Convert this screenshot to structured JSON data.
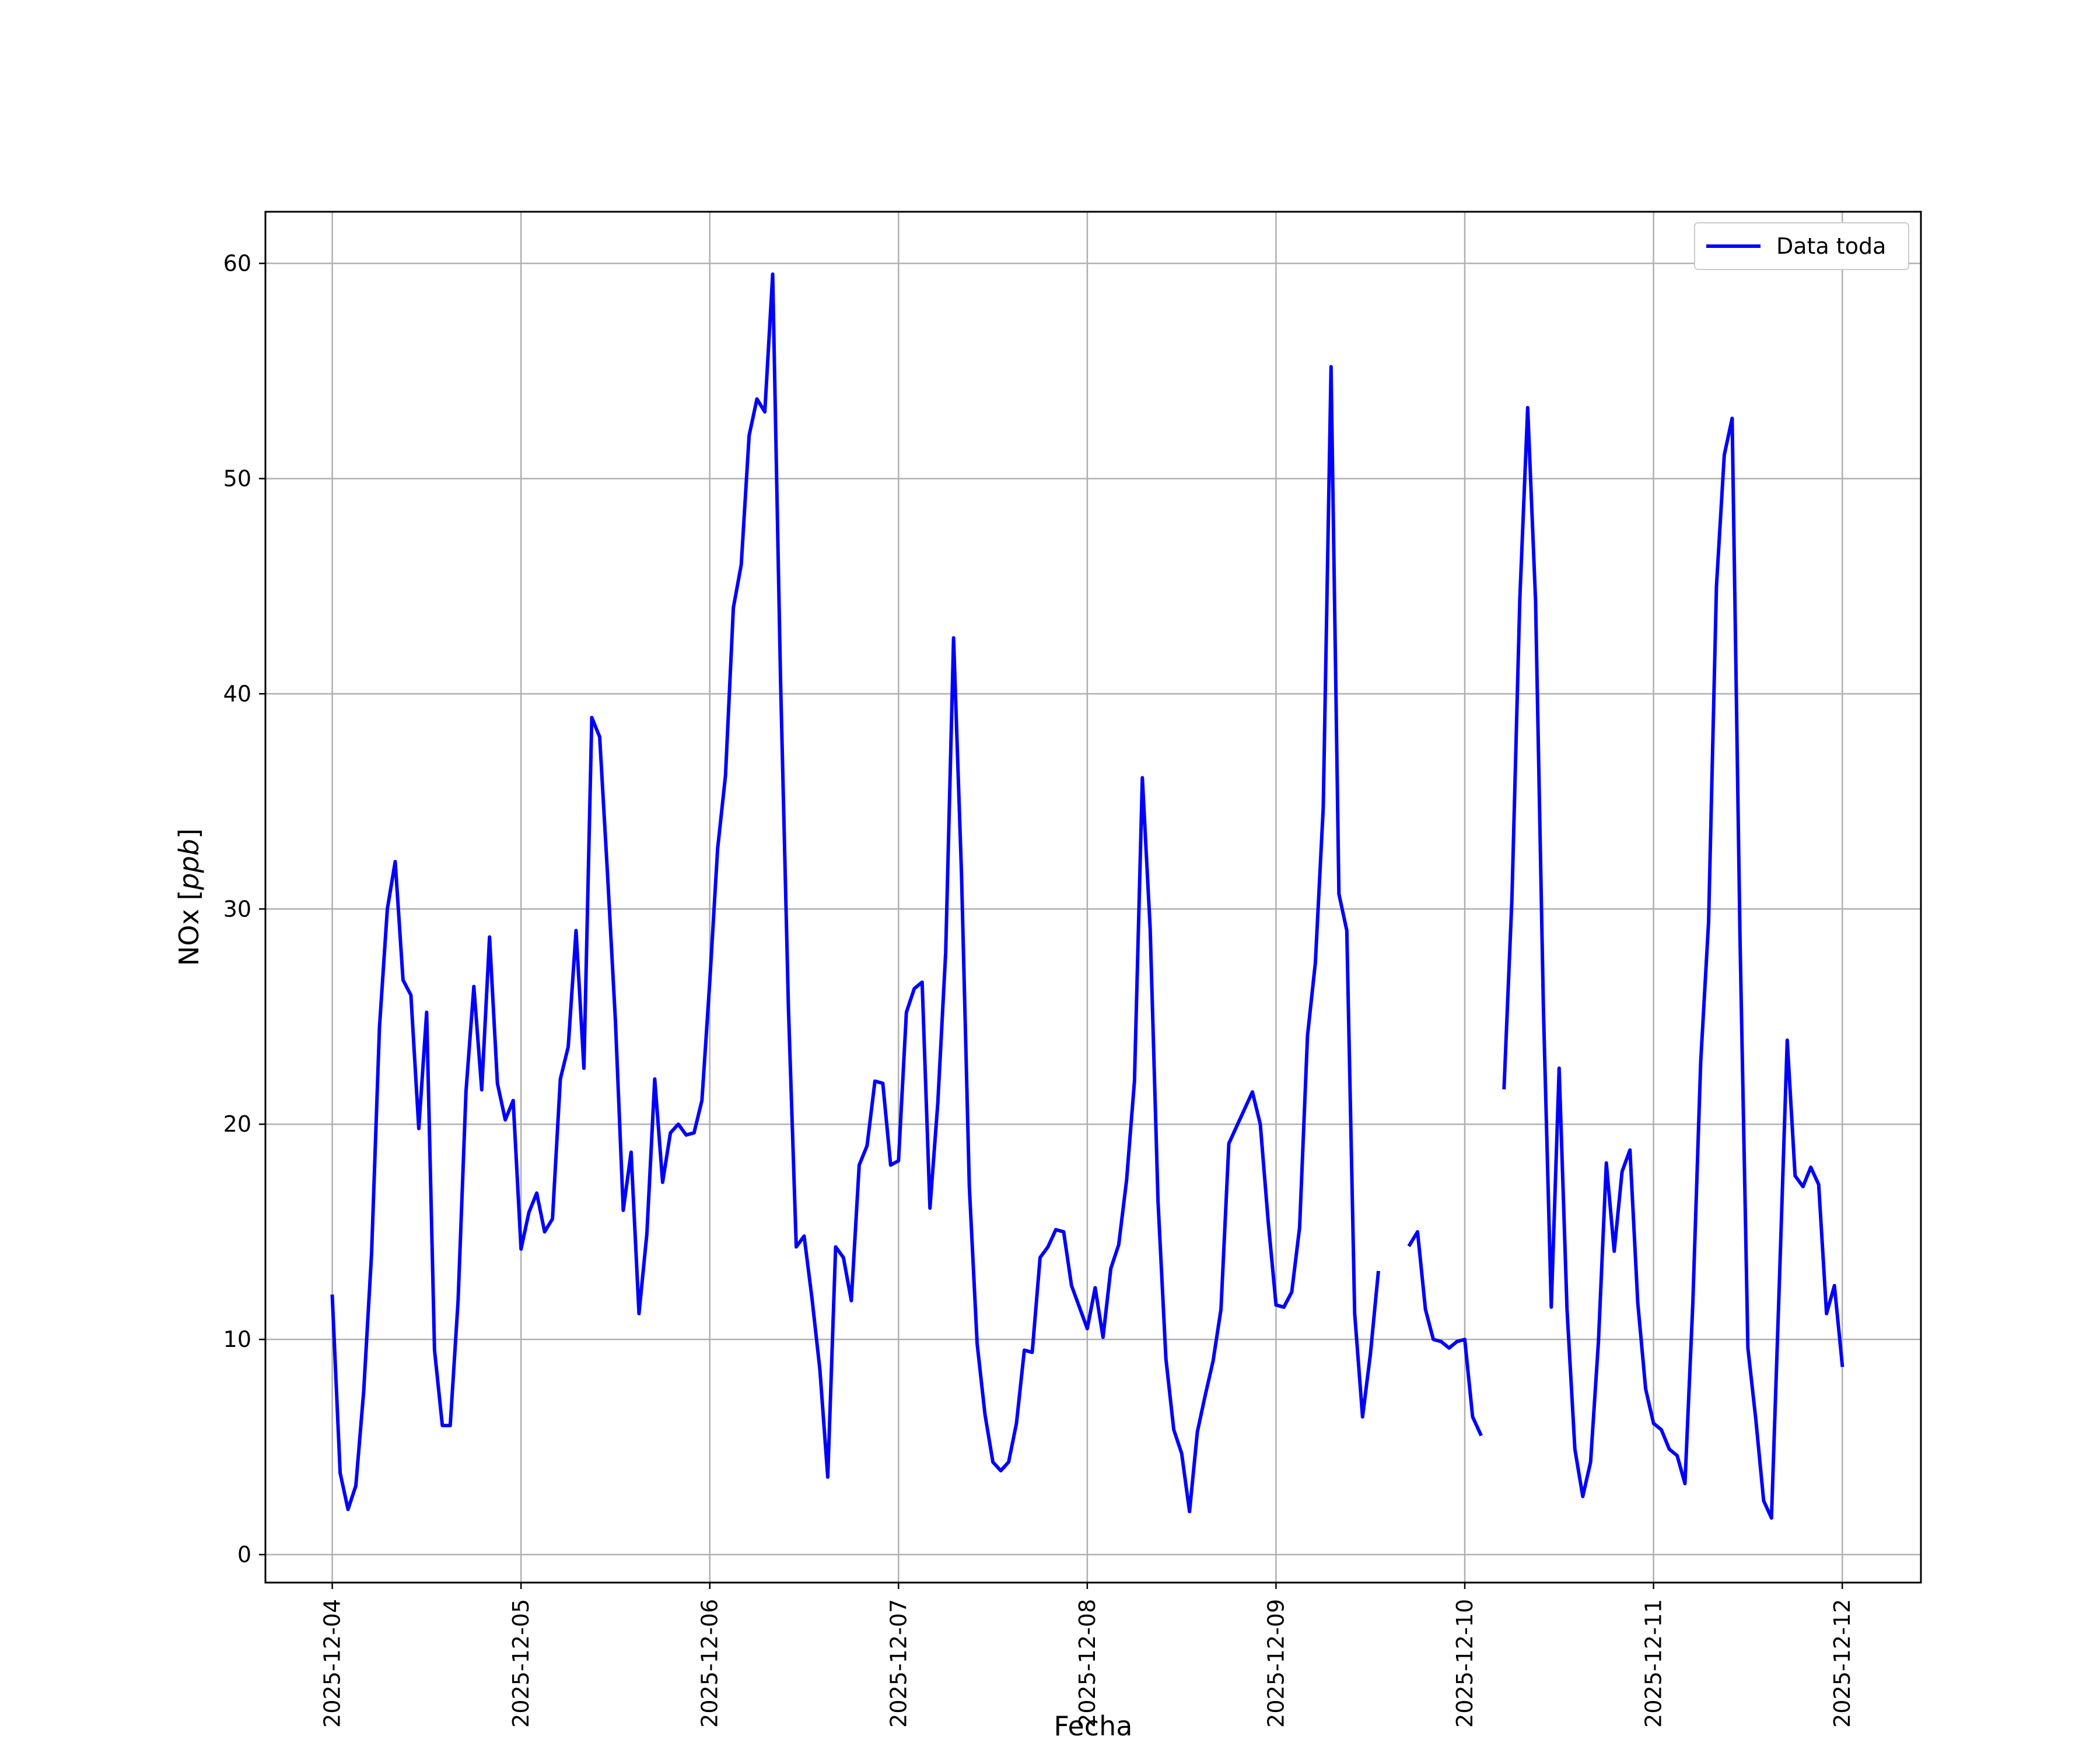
{
  "chart_data": {
    "type": "line",
    "title": "",
    "xlabel": "Fecha",
    "ylabel": "NOx [ppb]",
    "ylabel_parts": {
      "name": "NOx [",
      "unit": "ppb",
      "close": "]"
    },
    "x_ticks": [
      "2025-12-04",
      "2025-12-05",
      "2025-12-06",
      "2025-12-07",
      "2025-12-08",
      "2025-12-09",
      "2025-12-10",
      "2025-12-11",
      "2025-12-12"
    ],
    "y_ticks": [
      0,
      10,
      20,
      30,
      40,
      50,
      60
    ],
    "xlim": [
      "2025-12-03T15:30",
      "2025-12-12T10:00"
    ],
    "ylim": [
      -1.3,
      62.4
    ],
    "grid": true,
    "legend_position": "top-right",
    "series": [
      {
        "name": "Data toda",
        "color": "#0000ff",
        "points": [
          [
            "2025-12-04T00:00",
            12.0
          ],
          [
            "2025-12-04T01:00",
            3.8
          ],
          [
            "2025-12-04T02:00",
            2.1
          ],
          [
            "2025-12-04T03:00",
            3.2
          ],
          [
            "2025-12-04T04:00",
            7.6
          ],
          [
            "2025-12-04T05:00",
            14.0
          ],
          [
            "2025-12-04T06:00",
            24.5
          ],
          [
            "2025-12-04T07:00",
            30.0
          ],
          [
            "2025-12-04T08:00",
            32.2
          ],
          [
            "2025-12-04T09:00",
            26.7
          ],
          [
            "2025-12-04T10:00",
            26.0
          ],
          [
            "2025-12-04T11:00",
            19.8
          ],
          [
            "2025-12-04T12:00",
            25.2
          ],
          [
            "2025-12-04T13:00",
            9.5
          ],
          [
            "2025-12-04T14:00",
            6.0
          ],
          [
            "2025-12-04T15:00",
            6.0
          ],
          [
            "2025-12-04T16:00",
            11.8
          ],
          [
            "2025-12-04T17:00",
            21.5
          ],
          [
            "2025-12-04T18:00",
            26.4
          ],
          [
            "2025-12-04T19:00",
            21.6
          ],
          [
            "2025-12-04T20:00",
            28.7
          ],
          [
            "2025-12-04T21:00",
            21.9
          ],
          [
            "2025-12-04T22:00",
            20.2
          ],
          [
            "2025-12-04T23:00",
            21.1
          ],
          [
            "2025-12-05T00:00",
            14.2
          ],
          [
            "2025-12-05T01:00",
            15.9
          ],
          [
            "2025-12-05T02:00",
            16.8
          ],
          [
            "2025-12-05T03:00",
            15.0
          ],
          [
            "2025-12-05T04:00",
            15.6
          ],
          [
            "2025-12-05T05:00",
            22.1
          ],
          [
            "2025-12-05T06:00",
            23.6
          ],
          [
            "2025-12-05T07:00",
            29.0
          ],
          [
            "2025-12-05T08:00",
            22.6
          ],
          [
            "2025-12-05T09:00",
            38.9
          ],
          [
            "2025-12-05T10:00",
            38.0
          ],
          [
            "2025-12-05T11:00",
            31.6
          ],
          [
            "2025-12-05T12:00",
            24.8
          ],
          [
            "2025-12-05T13:00",
            16.0
          ],
          [
            "2025-12-05T14:00",
            18.7
          ],
          [
            "2025-12-05T15:00",
            11.2
          ],
          [
            "2025-12-05T16:00",
            14.9
          ],
          [
            "2025-12-05T17:00",
            22.1
          ],
          [
            "2025-12-05T18:00",
            17.3
          ],
          [
            "2025-12-05T19:00",
            19.6
          ],
          [
            "2025-12-05T20:00",
            20.0
          ],
          [
            "2025-12-05T21:00",
            19.5
          ],
          [
            "2025-12-05T22:00",
            19.6
          ],
          [
            "2025-12-05T23:00",
            21.1
          ],
          [
            "2025-12-06T00:00",
            26.6
          ],
          [
            "2025-12-06T01:00",
            32.8
          ],
          [
            "2025-12-06T02:00",
            36.2
          ],
          [
            "2025-12-06T03:00",
            44.0
          ],
          [
            "2025-12-06T04:00",
            46.0
          ],
          [
            "2025-12-06T05:00",
            52.0
          ],
          [
            "2025-12-06T06:00",
            53.7
          ],
          [
            "2025-12-06T07:00",
            53.1
          ],
          [
            "2025-12-06T08:00",
            59.5
          ],
          [
            "2025-12-06T09:00",
            40.6
          ],
          [
            "2025-12-06T10:00",
            25.4
          ],
          [
            "2025-12-06T11:00",
            14.3
          ],
          [
            "2025-12-06T12:00",
            14.8
          ],
          [
            "2025-12-06T13:00",
            11.9
          ],
          [
            "2025-12-06T14:00",
            8.6
          ],
          [
            "2025-12-06T15:00",
            3.6
          ],
          [
            "2025-12-06T16:00",
            14.3
          ],
          [
            "2025-12-06T17:00",
            13.8
          ],
          [
            "2025-12-06T18:00",
            11.8
          ],
          [
            "2025-12-06T19:00",
            18.1
          ],
          [
            "2025-12-06T20:00",
            19.0
          ],
          [
            "2025-12-06T21:00",
            22.0
          ],
          [
            "2025-12-06T22:00",
            21.9
          ],
          [
            "2025-12-06T23:00",
            18.1
          ],
          [
            "2025-12-07T00:00",
            18.3
          ],
          [
            "2025-12-07T01:00",
            25.2
          ],
          [
            "2025-12-07T02:00",
            26.3
          ],
          [
            "2025-12-07T03:00",
            26.6
          ],
          [
            "2025-12-07T04:00",
            16.1
          ],
          [
            "2025-12-07T05:00",
            21.0
          ],
          [
            "2025-12-07T06:00",
            28.0
          ],
          [
            "2025-12-07T07:00",
            42.6
          ],
          [
            "2025-12-07T08:00",
            31.7
          ],
          [
            "2025-12-07T09:00",
            17.1
          ],
          [
            "2025-12-07T10:00",
            9.8
          ],
          [
            "2025-12-07T11:00",
            6.5
          ],
          [
            "2025-12-07T12:00",
            4.3
          ],
          [
            "2025-12-07T13:00",
            3.9
          ],
          [
            "2025-12-07T14:00",
            4.3
          ],
          [
            "2025-12-07T15:00",
            6.1
          ],
          [
            "2025-12-07T16:00",
            9.5
          ],
          [
            "2025-12-07T17:00",
            9.4
          ],
          [
            "2025-12-07T18:00",
            13.8
          ],
          [
            "2025-12-07T19:00",
            14.3
          ],
          [
            "2025-12-07T20:00",
            15.1
          ],
          [
            "2025-12-07T21:00",
            15.0
          ],
          [
            "2025-12-07T22:00",
            12.5
          ],
          [
            "2025-12-07T23:00",
            11.5
          ],
          [
            "2025-12-08T00:00",
            10.5
          ],
          [
            "2025-12-08T01:00",
            12.4
          ],
          [
            "2025-12-08T02:00",
            10.1
          ],
          [
            "2025-12-08T03:00",
            13.3
          ],
          [
            "2025-12-08T04:00",
            14.4
          ],
          [
            "2025-12-08T05:00",
            17.4
          ],
          [
            "2025-12-08T06:00",
            22.0
          ],
          [
            "2025-12-08T07:00",
            36.1
          ],
          [
            "2025-12-08T08:00",
            29.1
          ],
          [
            "2025-12-08T09:00",
            16.4
          ],
          [
            "2025-12-08T10:00",
            9.1
          ],
          [
            "2025-12-08T11:00",
            5.8
          ],
          [
            "2025-12-08T12:00",
            4.7
          ],
          [
            "2025-12-08T13:00",
            2.0
          ],
          [
            "2025-12-08T14:00",
            5.7
          ],
          [
            "2025-12-08T15:00",
            7.4
          ],
          [
            "2025-12-08T16:00",
            9.0
          ],
          [
            "2025-12-08T17:00",
            11.4
          ],
          [
            "2025-12-08T18:00",
            19.1
          ],
          [
            "2025-12-08T19:00",
            19.9
          ],
          [
            "2025-12-08T20:00",
            20.7
          ],
          [
            "2025-12-08T21:00",
            21.5
          ],
          [
            "2025-12-08T22:00",
            20.0
          ],
          [
            "2025-12-08T23:00",
            15.5
          ],
          [
            "2025-12-09T00:00",
            11.6
          ],
          [
            "2025-12-09T01:00",
            11.5
          ],
          [
            "2025-12-09T02:00",
            12.2
          ],
          [
            "2025-12-09T03:00",
            15.2
          ],
          [
            "2025-12-09T04:00",
            24.1
          ],
          [
            "2025-12-09T05:00",
            27.5
          ],
          [
            "2025-12-09T06:00",
            34.7
          ],
          [
            "2025-12-09T07:00",
            55.2
          ],
          [
            "2025-12-09T08:00",
            30.7
          ],
          [
            "2025-12-09T09:00",
            29.0
          ],
          [
            "2025-12-09T10:00",
            11.2
          ],
          [
            "2025-12-09T11:00",
            6.4
          ],
          [
            "2025-12-09T12:00",
            9.3
          ],
          [
            "2025-12-09T13:00",
            13.1
          ],
          [
            "2025-12-09T14:00",
            null
          ],
          [
            "2025-12-09T15:00",
            null
          ],
          [
            "2025-12-09T16:00",
            null
          ],
          [
            "2025-12-09T17:00",
            14.4
          ],
          [
            "2025-12-09T18:00",
            15.0
          ],
          [
            "2025-12-09T19:00",
            11.4
          ],
          [
            "2025-12-09T20:00",
            10.0
          ],
          [
            "2025-12-09T21:00",
            9.9
          ],
          [
            "2025-12-09T22:00",
            9.6
          ],
          [
            "2025-12-09T23:00",
            9.9
          ],
          [
            "2025-12-10T00:00",
            10.0
          ],
          [
            "2025-12-10T01:00",
            6.4
          ],
          [
            "2025-12-10T02:00",
            5.6
          ],
          [
            "2025-12-10T03:00",
            null
          ],
          [
            "2025-12-10T04:00",
            null
          ],
          [
            "2025-12-10T05:00",
            21.7
          ],
          [
            "2025-12-10T06:00",
            30.5
          ],
          [
            "2025-12-10T07:00",
            44.4
          ],
          [
            "2025-12-10T08:00",
            53.3
          ],
          [
            "2025-12-10T09:00",
            44.3
          ],
          [
            "2025-12-10T10:00",
            25.3
          ],
          [
            "2025-12-10T11:00",
            11.5
          ],
          [
            "2025-12-10T12:00",
            22.6
          ],
          [
            "2025-12-10T13:00",
            11.4
          ],
          [
            "2025-12-10T14:00",
            4.9
          ],
          [
            "2025-12-10T15:00",
            2.7
          ],
          [
            "2025-12-10T16:00",
            4.3
          ],
          [
            "2025-12-10T17:00",
            9.9
          ],
          [
            "2025-12-10T18:00",
            18.2
          ],
          [
            "2025-12-10T19:00",
            14.1
          ],
          [
            "2025-12-10T20:00",
            17.8
          ],
          [
            "2025-12-10T21:00",
            18.8
          ],
          [
            "2025-12-10T22:00",
            11.7
          ],
          [
            "2025-12-10T23:00",
            7.7
          ],
          [
            "2025-12-11T00:00",
            6.1
          ],
          [
            "2025-12-11T01:00",
            5.8
          ],
          [
            "2025-12-11T02:00",
            4.9
          ],
          [
            "2025-12-11T03:00",
            4.6
          ],
          [
            "2025-12-11T04:00",
            3.3
          ],
          [
            "2025-12-11T05:00",
            11.7
          ],
          [
            "2025-12-11T06:00",
            22.9
          ],
          [
            "2025-12-11T07:00",
            29.4
          ],
          [
            "2025-12-11T08:00",
            45.0
          ],
          [
            "2025-12-11T09:00",
            51.1
          ],
          [
            "2025-12-11T10:00",
            52.8
          ],
          [
            "2025-12-11T11:00",
            28.6
          ],
          [
            "2025-12-11T12:00",
            9.6
          ],
          [
            "2025-12-11T13:00",
            6.3
          ],
          [
            "2025-12-11T14:00",
            2.5
          ],
          [
            "2025-12-11T15:00",
            1.7
          ],
          [
            "2025-12-11T16:00",
            12.6
          ],
          [
            "2025-12-11T17:00",
            23.9
          ],
          [
            "2025-12-11T18:00",
            17.6
          ],
          [
            "2025-12-11T19:00",
            17.1
          ],
          [
            "2025-12-11T20:00",
            18.0
          ],
          [
            "2025-12-11T21:00",
            17.2
          ],
          [
            "2025-12-11T22:00",
            11.2
          ],
          [
            "2025-12-11T23:00",
            12.5
          ],
          [
            "2025-12-12T00:00",
            8.8
          ]
        ]
      }
    ]
  }
}
